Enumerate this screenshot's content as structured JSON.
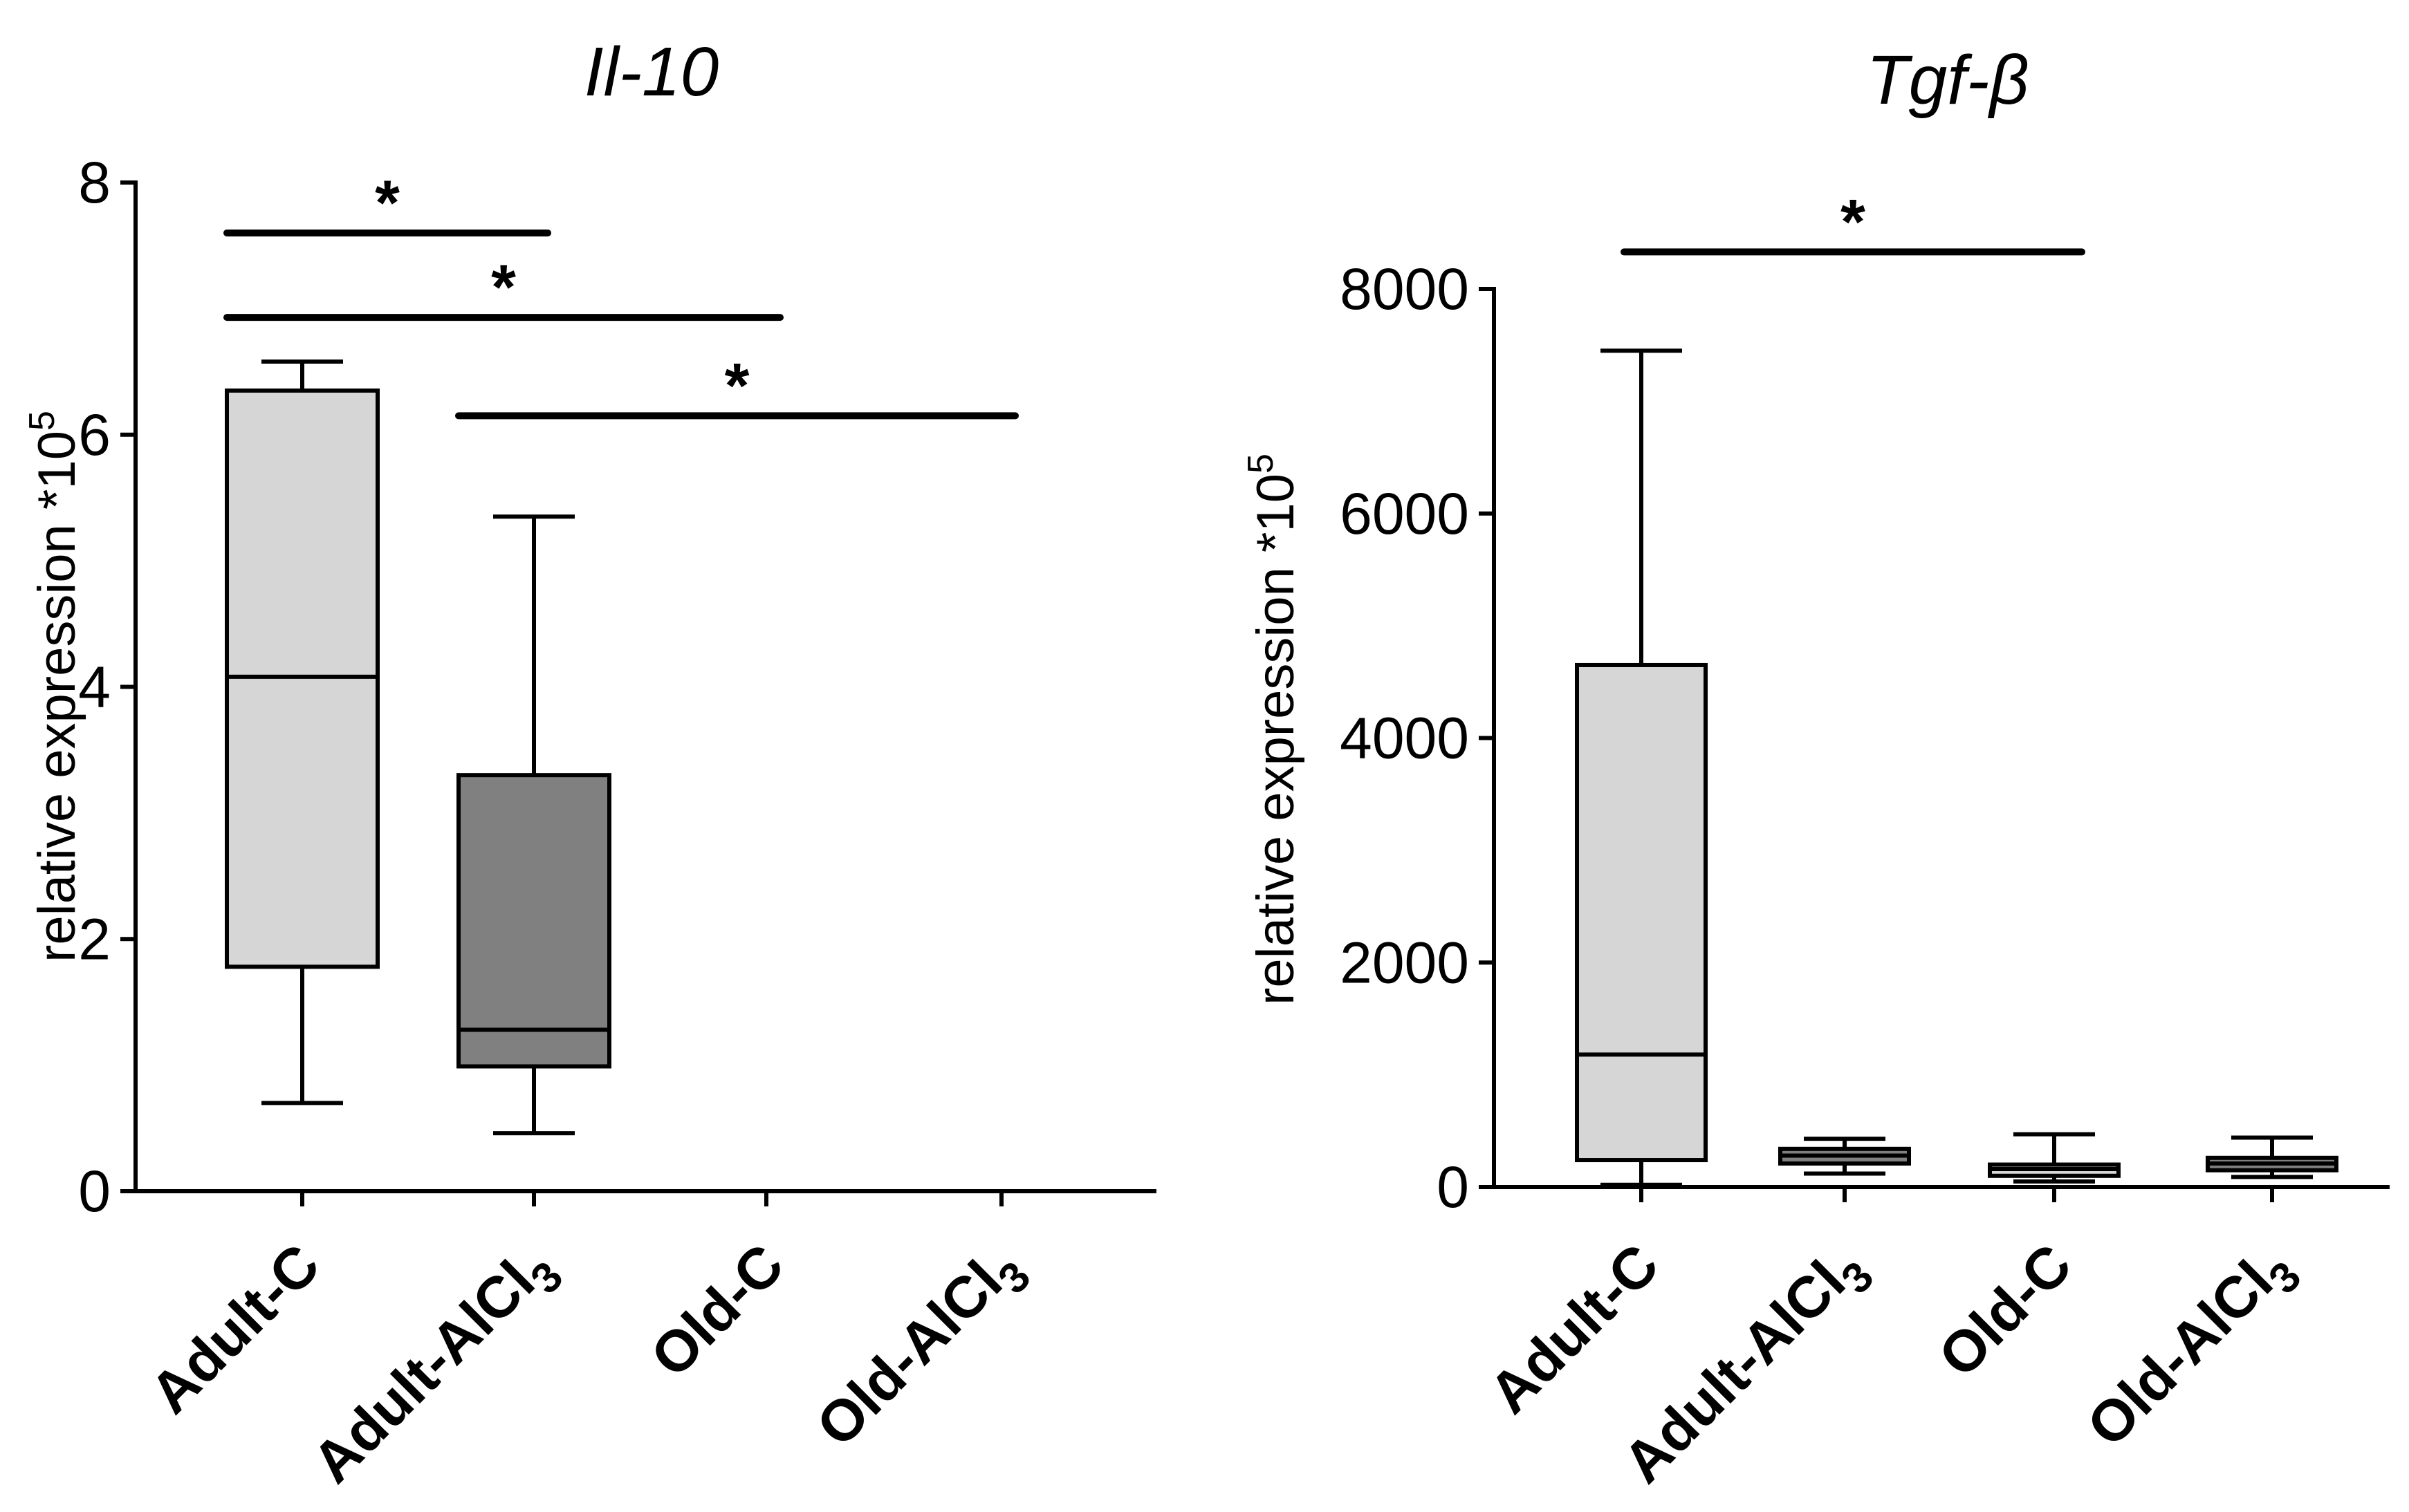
{
  "chart_data": [
    {
      "type": "boxplot",
      "title": "Il-10",
      "ylabel": "relative expression *10",
      "ylabel_sup": "5",
      "ylim": [
        0,
        8
      ],
      "yticks": [
        0,
        2,
        4,
        6,
        8
      ],
      "categories": [
        {
          "base": "Adult-C",
          "sub": ""
        },
        {
          "base": "Adult-AlCl",
          "sub": "3"
        },
        {
          "base": "Old-C",
          "sub": ""
        },
        {
          "base": "Old-AlCl",
          "sub": "3"
        }
      ],
      "colors": [
        "#d6d6d6",
        "#808080",
        "#d6d6d6",
        "#808080"
      ],
      "boxes": [
        {
          "min": 0.7,
          "q1": 1.78,
          "median": 4.08,
          "q3": 6.35,
          "max": 6.58
        },
        {
          "min": 0.46,
          "q1": 0.99,
          "median": 1.28,
          "q3": 3.3,
          "max": 5.35
        },
        {
          "min": 0.0,
          "q1": 0.0,
          "median": 0.0,
          "q3": 0.0,
          "max": 0.0
        },
        {
          "min": 0.0,
          "q1": 0.0,
          "median": 0.0,
          "q3": 0.0,
          "max": 0.0
        }
      ],
      "significance": [
        {
          "from": 0,
          "to": 1,
          "y": 7.6,
          "label": "*"
        },
        {
          "from": 0,
          "to": 2,
          "y": 6.93,
          "label": "*"
        },
        {
          "from": 1,
          "to": 3,
          "y": 6.15,
          "label": "*"
        }
      ]
    },
    {
      "type": "boxplot",
      "title": "Tgf-β",
      "ylabel": "relative expression *10",
      "ylabel_sup": "5",
      "ylim": [
        0,
        8000
      ],
      "yticks": [
        0,
        2000,
        4000,
        6000,
        8000
      ],
      "categories": [
        {
          "base": "Adult-C",
          "sub": ""
        },
        {
          "base": "Adult-AlCl",
          "sub": "3"
        },
        {
          "base": "Old-C",
          "sub": ""
        },
        {
          "base": "Old-AlCl",
          "sub": "3"
        }
      ],
      "colors": [
        "#d6d6d6",
        "#808080",
        "#d6d6d6",
        "#808080"
      ],
      "boxes": [
        {
          "min": 20,
          "q1": 240,
          "median": 1180,
          "q3": 4650,
          "max": 7450
        },
        {
          "min": 120,
          "q1": 210,
          "median": 280,
          "q3": 340,
          "max": 430
        },
        {
          "min": 50,
          "q1": 100,
          "median": 160,
          "q3": 200,
          "max": 470
        },
        {
          "min": 90,
          "q1": 150,
          "median": 210,
          "q3": 260,
          "max": 440
        }
      ],
      "significance": [
        {
          "from": 0,
          "to": 2,
          "y": 8330,
          "label": "*"
        }
      ]
    }
  ]
}
